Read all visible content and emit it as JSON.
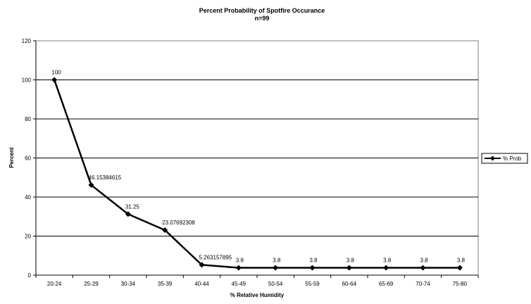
{
  "chart_data": {
    "type": "line",
    "title": "Percent Probability of Spotfire Occurance",
    "subtitle": "n=99",
    "xlabel": "% Relative Humidity",
    "ylabel": "Percent",
    "ylim": [
      0,
      120
    ],
    "yticks": [
      "0",
      "20",
      "40",
      "60",
      "80",
      "100",
      "120"
    ],
    "grid": true,
    "legend_position": "right",
    "categories": [
      "20-24",
      "25-29",
      "30-34",
      "35-39",
      "40-44",
      "45-49",
      "50-54",
      "55-59",
      "60-64",
      "65-69",
      "70-74",
      "75-80"
    ],
    "series": [
      {
        "name": "% Prob",
        "values": [
          100,
          46.15384615,
          31.25,
          23.07692308,
          5.263157895,
          3.8,
          3.8,
          3.8,
          3.8,
          3.8,
          3.8,
          3.8
        ],
        "labels": [
          "100",
          "46.15384615",
          "31.25",
          "23.07692308",
          "5.263157895",
          "3.8",
          "3.8",
          "3.8",
          "3.8",
          "3.8",
          "3.8",
          "3.8"
        ],
        "color": "#000000",
        "marker": "diamond"
      }
    ]
  }
}
